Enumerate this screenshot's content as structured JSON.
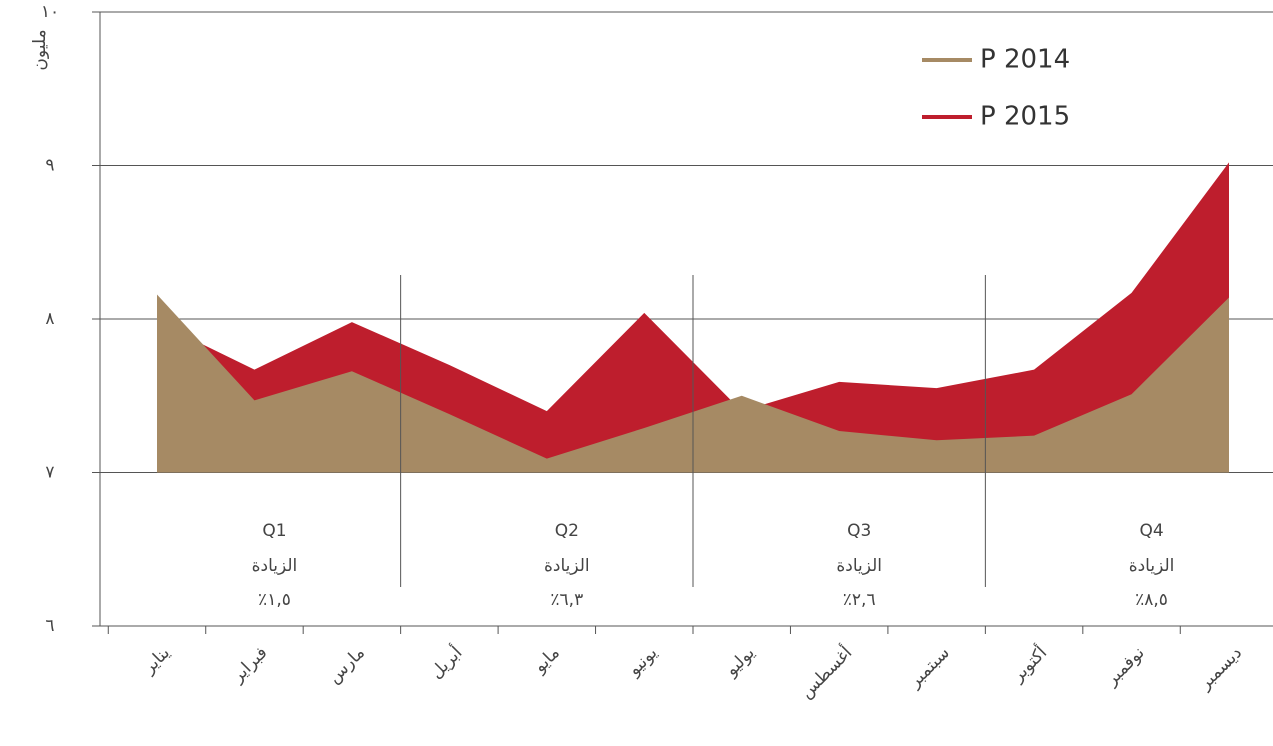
{
  "chart_data": {
    "type": "area",
    "y_label": "مليون",
    "categories": [
      "يناير",
      "فبراير",
      "مارس",
      "أبريل",
      "مايو",
      "يونيو",
      "يوليو",
      "أغسطس",
      "سبتمبر",
      "أكتوبر",
      "نوفمبر",
      "ديسمبر"
    ],
    "series": [
      {
        "name": "P 2015",
        "color": "#be1e2d",
        "values": [
          7.98,
          7.67,
          7.98,
          7.7,
          7.4,
          8.04,
          7.4,
          7.59,
          7.55,
          7.67,
          8.17,
          9.02
        ]
      },
      {
        "name": "P 2014",
        "color": "#a68a64",
        "values": [
          8.16,
          7.47,
          7.66,
          7.38,
          7.09,
          7.29,
          7.5,
          7.27,
          7.21,
          7.24,
          7.51,
          8.14
        ]
      }
    ],
    "ylim": [
      6,
      10
    ],
    "yticks": [
      {
        "value": 6,
        "label": "٦"
      },
      {
        "value": 7,
        "label": "٧"
      },
      {
        "value": 8,
        "label": "٨"
      },
      {
        "value": 9,
        "label": "٩"
      },
      {
        "value": 10,
        "label": "١٠"
      }
    ],
    "grid": true,
    "legend": "upper right",
    "quarters": [
      {
        "label": "Q1",
        "text": "الزيادة",
        "increase": "٪١,٥"
      },
      {
        "label": "Q2",
        "text": "الزيادة",
        "increase": "٪٦,٣"
      },
      {
        "label": "Q3",
        "text": "الزيادة",
        "increase": "٪٢,٦"
      },
      {
        "label": "Q4",
        "text": "الزيادة",
        "increase": "٪٨,٥"
      }
    ]
  }
}
